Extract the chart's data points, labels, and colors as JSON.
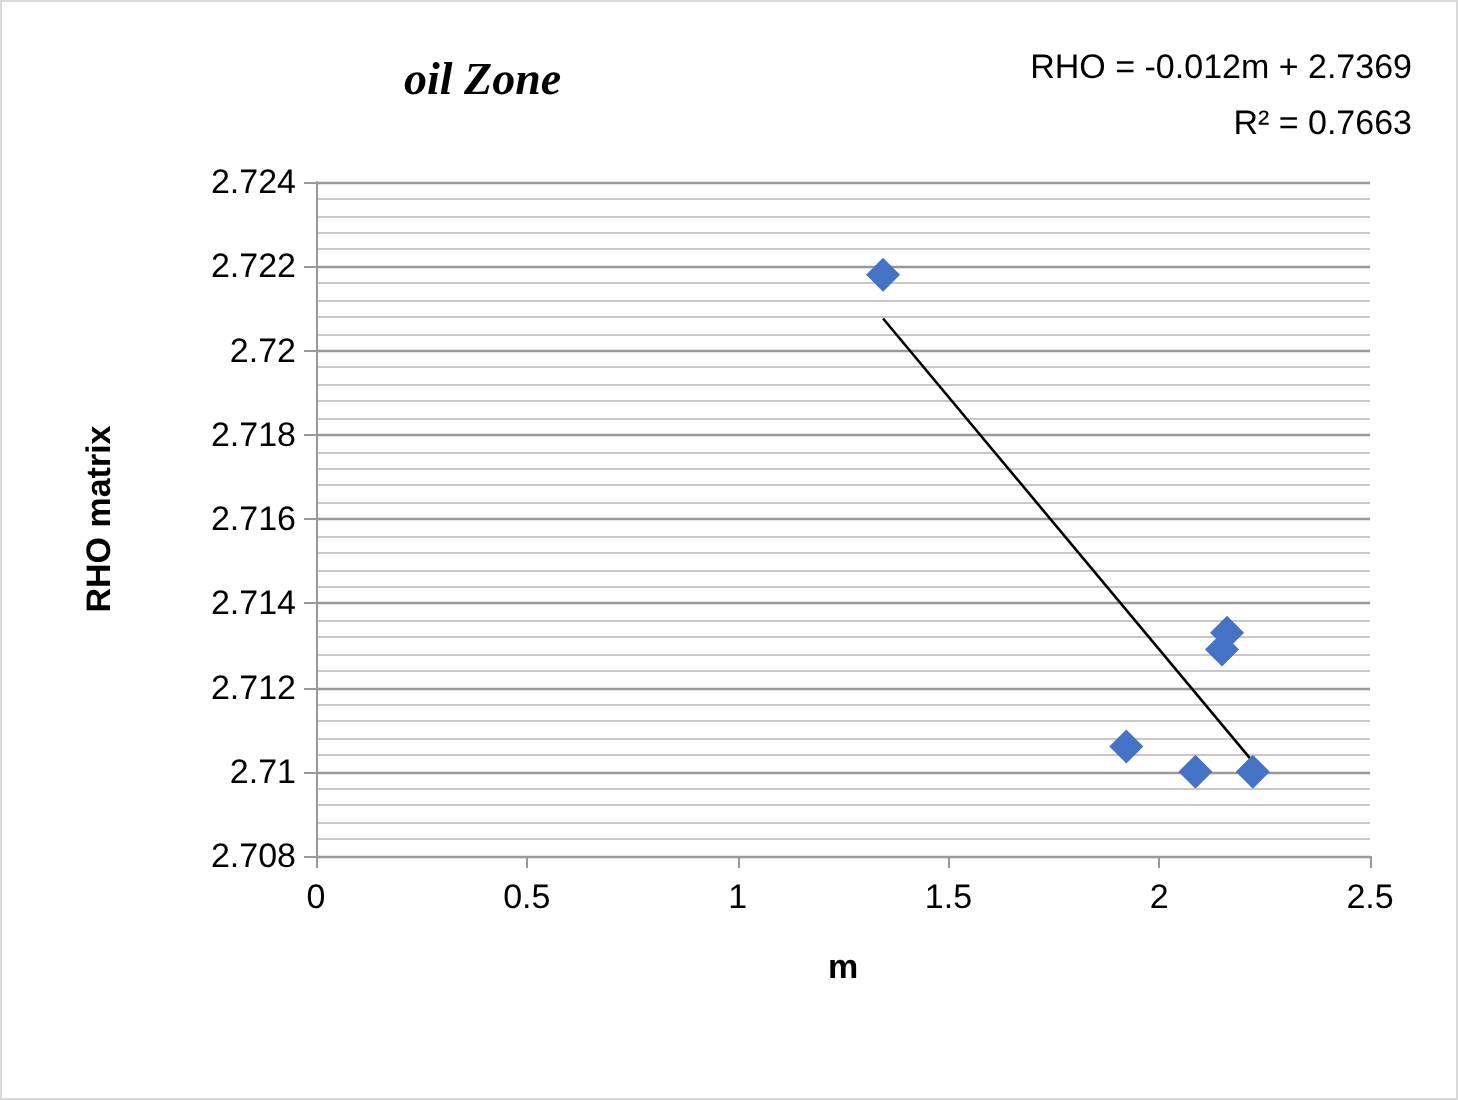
{
  "chart_data": {
    "type": "scatter",
    "title": "oil Zone",
    "xlabel": "m",
    "ylabel": "RHO matrix",
    "annotations": [
      "RHO = -0.012m + 2.7369",
      "R² = 0.7663"
    ],
    "series": [
      {
        "color": "#4472c4",
        "marker": "diamond",
        "x": [
          1.345,
          1.922,
          2.086,
          2.222,
          2.149,
          2.161
        ],
        "values": [
          2.7218,
          2.7106,
          2.71,
          2.71,
          2.7129,
          2.7133
        ]
      },
      {
        "type": "line",
        "color": "#000000",
        "marker": "none",
        "x": [
          1.345,
          2.222
        ],
        "values": [
          2.72076,
          2.71024
        ]
      }
    ],
    "xlim": [
      0,
      2.5
    ],
    "xticks": [
      0,
      0.5,
      1,
      1.5,
      2,
      2.5
    ],
    "ylim": [
      2.708,
      2.724
    ],
    "yticks": [
      2.708,
      2.71,
      2.712,
      2.714,
      2.716,
      2.718,
      2.72,
      2.722,
      2.724
    ],
    "grid": "y",
    "line_style": "solid"
  }
}
